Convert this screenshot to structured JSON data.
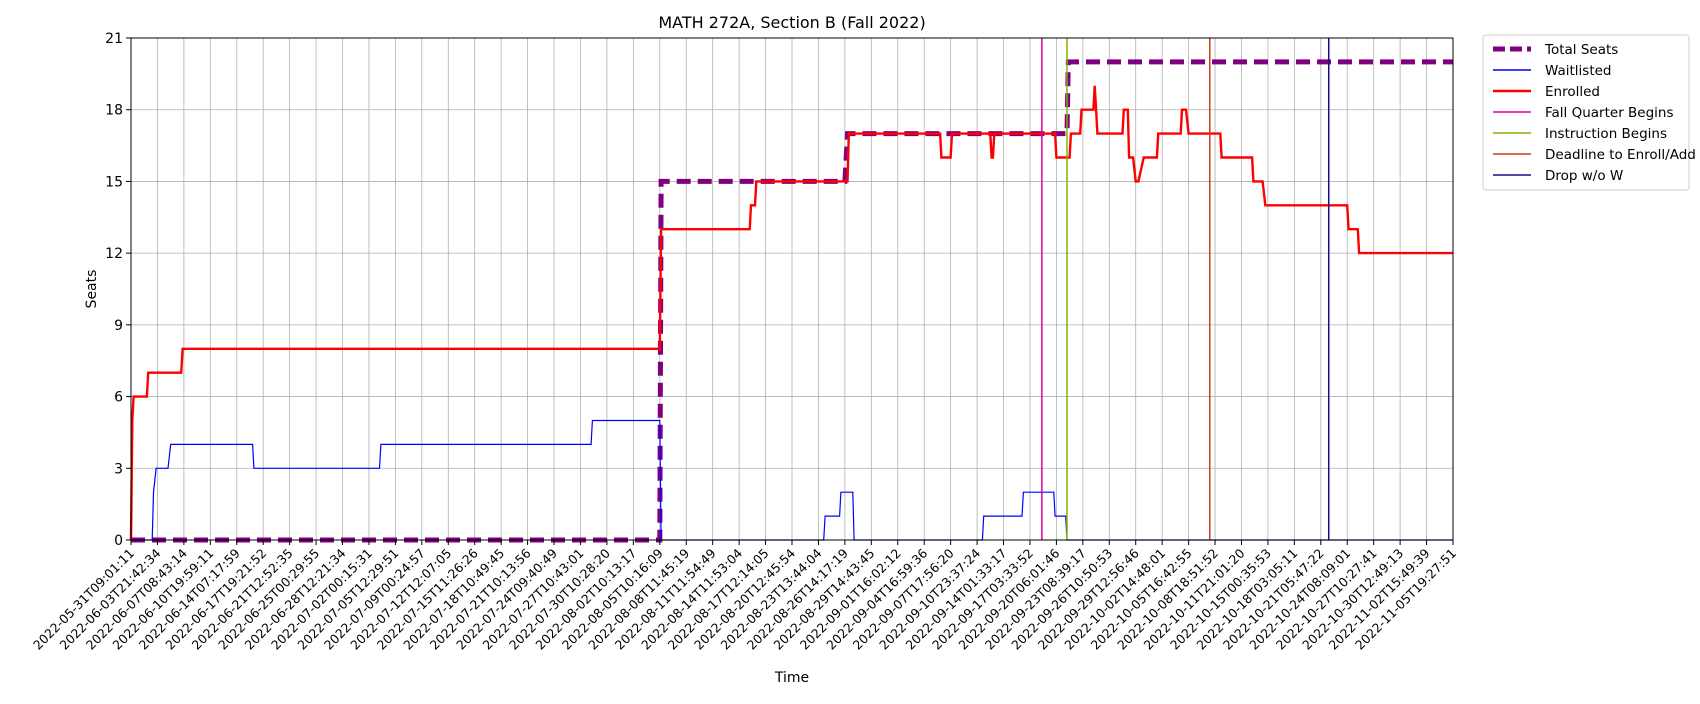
{
  "chart_data": {
    "type": "line",
    "title": "MATH 272A, Section B (Fall 2022)",
    "xlabel": "Time",
    "ylabel": "Seats",
    "ylim": [
      0,
      21
    ],
    "yticks": [
      0,
      3,
      6,
      9,
      12,
      15,
      18,
      21
    ],
    "grid": true,
    "legend_position": "outside-top-right",
    "x_tick_labels": [
      "2022-05-31T09:01:11",
      "2022-06-03T21:42:34",
      "2022-06-07T08:43:14",
      "2022-06-10T19:59:11",
      "2022-06-14T07:17:59",
      "2022-06-17T19:21:52",
      "2022-06-21T12:52:35",
      "2022-06-25T00:29:55",
      "2022-06-28T12:21:34",
      "2022-07-02T00:15:31",
      "2022-07-05T12:29:51",
      "2022-07-09T00:24:57",
      "2022-07-12T12:07:05",
      "2022-07-15T11:26:26",
      "2022-07-18T10:49:45",
      "2022-07-21T10:13:56",
      "2022-07-24T09:40:49",
      "2022-07-27T10:43:01",
      "2022-07-30T10:28:20",
      "2022-08-02T10:13:17",
      "2022-08-05T10:16:09",
      "2022-08-08T11:45:19",
      "2022-08-11T11:54:49",
      "2022-08-14T11:53:04",
      "2022-08-17T12:14:05",
      "2022-08-20T12:45:54",
      "2022-08-23T13:44:04",
      "2022-08-26T14:17:19",
      "2022-08-29T14:43:45",
      "2022-09-01T16:02:12",
      "2022-09-04T16:59:36",
      "2022-09-07T17:56:20",
      "2022-09-10T23:37:24",
      "2022-09-14T01:33:17",
      "2022-09-17T03:33:52",
      "2022-09-20T06:01:46",
      "2022-09-23T08:39:17",
      "2022-09-26T10:50:53",
      "2022-09-29T12:56:46",
      "2022-10-02T14:48:01",
      "2022-10-05T16:42:55",
      "2022-10-08T18:51:52",
      "2022-10-11T21:01:20",
      "2022-10-15T00:35:53",
      "2022-10-18T03:05:11",
      "2022-10-21T05:47:22",
      "2022-10-24T08:09:01",
      "2022-10-27T10:27:41",
      "2022-10-30T12:49:13",
      "2022-11-02T15:49:39",
      "2022-11-05T19:27:51"
    ],
    "x_range": [
      0,
      50
    ],
    "series": [
      {
        "name": "Total Seats",
        "color": "#800080",
        "style": "dashed",
        "x": [
          0,
          20.0,
          20.05,
          27.0,
          27.1,
          35.4,
          35.45,
          50
        ],
        "y": [
          0,
          0,
          15,
          15,
          17,
          17,
          20,
          20
        ]
      },
      {
        "name": "Waitlisted",
        "color": "#0000ff",
        "style": "solid",
        "x": [
          0,
          0.8,
          0.85,
          0.95,
          1.4,
          1.5,
          4.6,
          4.65,
          9.4,
          9.45,
          17.4,
          17.45,
          20.0,
          20.05,
          26.2,
          26.25,
          26.8,
          26.85,
          27.3,
          27.35,
          32.2,
          32.25,
          32.75,
          32.8,
          33.7,
          33.75,
          34.9,
          34.95,
          35.35,
          35.4,
          50
        ],
        "y": [
          0,
          0,
          2,
          3,
          3,
          4,
          4,
          3,
          3,
          4,
          4,
          5,
          5,
          0,
          0,
          1,
          1,
          2,
          2,
          0,
          0,
          1,
          1,
          1,
          1,
          2,
          2,
          1,
          1,
          0,
          0
        ]
      },
      {
        "name": "Enrolled",
        "color": "#ff0000",
        "style": "solid",
        "x": [
          0,
          0.05,
          0.1,
          0.6,
          0.65,
          1.9,
          1.95,
          20.0,
          20.05,
          23.4,
          23.45,
          23.6,
          23.65,
          27.1,
          27.15,
          30.6,
          30.65,
          31.0,
          31.05,
          32.5,
          32.55,
          32.6,
          32.65,
          34.95,
          35.0,
          35.5,
          35.55,
          35.9,
          35.95,
          36.4,
          36.45,
          36.5,
          36.55,
          37.5,
          37.55,
          37.7,
          37.75,
          37.9,
          38.0,
          38.1,
          38.3,
          38.8,
          38.85,
          39.7,
          39.75,
          39.9,
          40.0,
          41.2,
          41.25,
          42.4,
          42.45,
          42.8,
          42.9,
          46.0,
          46.05,
          46.4,
          46.45,
          50
        ],
        "y": [
          0,
          5,
          6,
          6,
          7,
          7,
          8,
          8,
          13,
          13,
          14,
          14,
          15,
          15,
          17,
          17,
          16,
          16,
          17,
          17,
          16,
          16,
          17,
          17,
          16,
          16,
          17,
          17,
          18,
          18,
          19,
          18,
          17,
          17,
          18,
          18,
          16,
          16,
          15,
          15,
          16,
          16,
          17,
          17,
          18,
          18,
          17,
          17,
          16,
          16,
          15,
          15,
          14,
          14,
          13,
          13,
          12,
          12
        ]
      },
      {
        "name": "Fall Quarter Begins",
        "color": "#e000a0",
        "style": "vline",
        "x": [
          34.45
        ]
      },
      {
        "name": "Instruction Begins",
        "color": "#7cb800",
        "style": "vline",
        "x": [
          35.4
        ]
      },
      {
        "name": "Deadline to Enroll/Add",
        "color": "#d23a1a",
        "style": "vline",
        "x": [
          40.8
        ]
      },
      {
        "name": "Drop w/o W",
        "color": "#1a0a8c",
        "style": "vline",
        "x": [
          45.3
        ]
      }
    ]
  }
}
